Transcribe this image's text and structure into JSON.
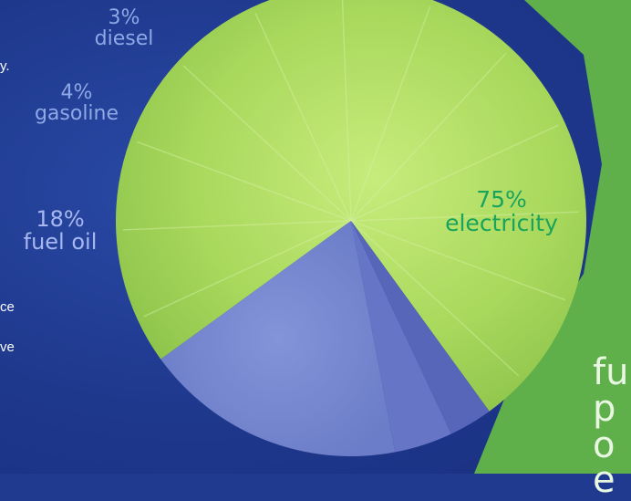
{
  "chart_data": {
    "type": "pie",
    "slices": [
      {
        "label": "electricity",
        "value": 75,
        "pct_label": "75%",
        "color": "#9fd05a"
      },
      {
        "label": "fuel oil",
        "value": 18,
        "pct_label": "18%",
        "color": "#7e8fd8"
      },
      {
        "label": "gasoline",
        "value": 4,
        "pct_label": "4%",
        "color": "#6675c6"
      },
      {
        "label": "diesel",
        "value": 3,
        "pct_label": "3%",
        "color": "#5766b8"
      }
    ]
  },
  "fragments": {
    "left_1": "y.",
    "left_2": "ce",
    "left_3": "ve",
    "right_1": "fu",
    "right_2": "p",
    "right_3": "o",
    "right_4": "e"
  },
  "colors": {
    "background": "#1f3a8f",
    "green_panel": "#5fb04a",
    "electricity_text": "#1aa35a",
    "minor_text": "#8fa8e6"
  }
}
